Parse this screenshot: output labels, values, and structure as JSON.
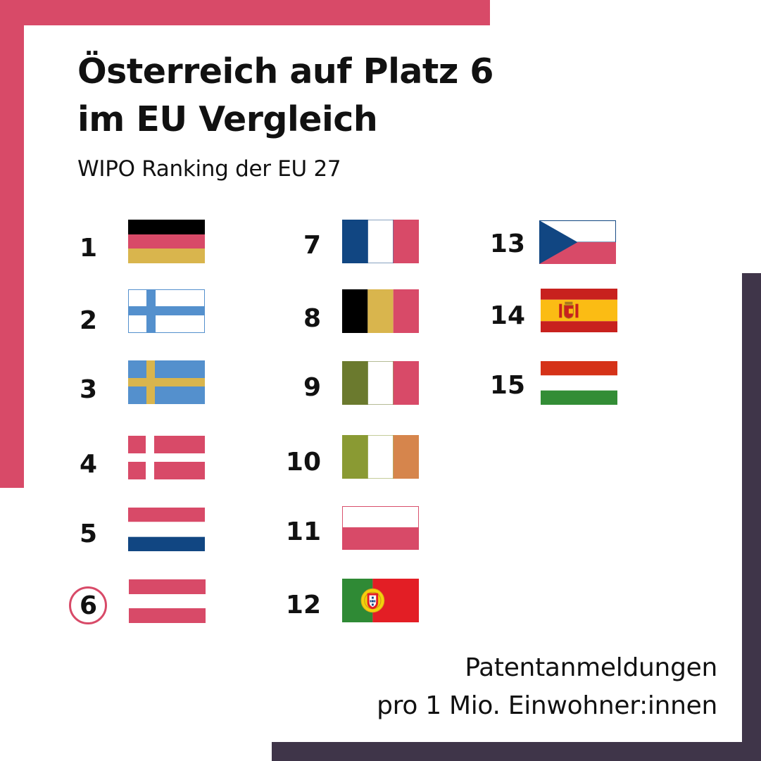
{
  "title_line1": "Österreich auf Platz 6",
  "title_line2": "im EU Vergleich",
  "subtitle": "WIPO Ranking der EU 27",
  "colors": {
    "accent_pink": "#d84a68",
    "frame_dark": "#3f3549"
  },
  "ranking": [
    {
      "rank": "1",
      "flag": "germany-flag-icon"
    },
    {
      "rank": "2",
      "flag": "finland-flag-icon"
    },
    {
      "rank": "3",
      "flag": "sweden-flag-icon"
    },
    {
      "rank": "4",
      "flag": "denmark-flag-icon"
    },
    {
      "rank": "5",
      "flag": "netherlands-flag-icon"
    },
    {
      "rank": "6",
      "flag": "austria-flag-icon",
      "highlighted": true
    },
    {
      "rank": "7",
      "flag": "france-flag-icon"
    },
    {
      "rank": "8",
      "flag": "belgium-flag-icon"
    },
    {
      "rank": "9",
      "flag": "italy-flag-icon"
    },
    {
      "rank": "10",
      "flag": "ireland-flag-icon"
    },
    {
      "rank": "11",
      "flag": "poland-flag-icon"
    },
    {
      "rank": "12",
      "flag": "portugal-flag-icon"
    },
    {
      "rank": "13",
      "flag": "czechia-flag-icon"
    },
    {
      "rank": "14",
      "flag": "spain-flag-icon"
    },
    {
      "rank": "15",
      "flag": "hungary-flag-icon"
    }
  ],
  "footnote_line1": "Patentanmeldungen",
  "footnote_line2": "pro 1 Mio. Einwohner:innen"
}
